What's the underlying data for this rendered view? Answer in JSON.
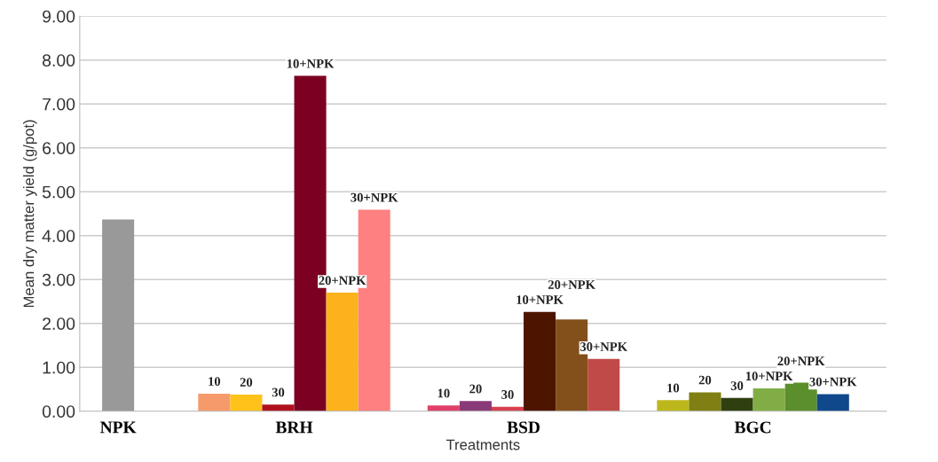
{
  "chart_data": {
    "type": "bar",
    "xlabel": "Treatments",
    "ylabel": "Mean dry matter yield (g/pot)",
    "categories": [
      "NPK",
      "BRH",
      "BSD",
      "BGC"
    ],
    "series": [
      {
        "colors": [
          "#999999",
          null,
          null,
          null
        ],
        "values": [
          4.37,
          null,
          null,
          null
        ]
      },
      {
        "name": "10",
        "colors": [
          null,
          "#f79a6b",
          "#e0406a",
          "#bcb81c"
        ],
        "values": [
          null,
          0.4,
          0.13,
          0.25
        ]
      },
      {
        "name": "20",
        "colors": [
          null,
          "#ffc21a",
          "#8a3a78",
          "#7f7f14"
        ],
        "values": [
          null,
          0.38,
          0.23,
          0.43
        ]
      },
      {
        "name": "30",
        "colors": [
          null,
          "#b0101e",
          "#d8404e",
          "#2f3f10"
        ],
        "values": [
          null,
          0.15,
          0.1,
          0.3
        ]
      },
      {
        "name": "10+NPK",
        "colors": [
          null,
          "#7c0021",
          "#4d1400",
          "#80ad45"
        ],
        "values": [
          null,
          7.64,
          2.26,
          0.52
        ]
      },
      {
        "name": "20+NPK",
        "colors": [
          null,
          "#fbb21c",
          "#83501c",
          "#5a8f2c"
        ],
        "values": [
          null,
          2.7,
          2.09,
          0.65
        ]
      },
      {
        "name": "30+NPK",
        "colors": [
          null,
          "#ff8080",
          "#c04a48",
          "#10488c"
        ],
        "values": [
          null,
          4.59,
          1.19,
          0.39
        ]
      }
    ],
    "ylim": [
      0,
      9
    ],
    "yticks": [
      {
        "value": 0,
        "label": "0.00"
      },
      {
        "value": 1,
        "label": "1.00"
      },
      {
        "value": 2,
        "label": "2.00"
      },
      {
        "value": 3,
        "label": "3.00"
      },
      {
        "value": 4,
        "label": "4.00"
      },
      {
        "value": 5,
        "label": "5.00"
      },
      {
        "value": 6,
        "label": "6.00"
      },
      {
        "value": 7,
        "label": "7.00"
      },
      {
        "value": 8,
        "label": "8.00"
      },
      {
        "value": 9,
        "label": "9.00"
      }
    ],
    "grid": "y"
  }
}
